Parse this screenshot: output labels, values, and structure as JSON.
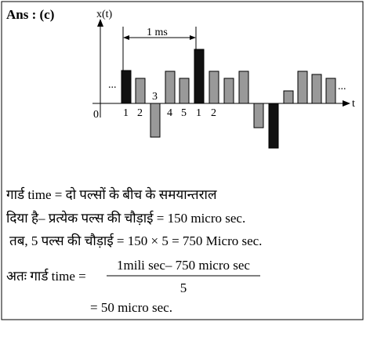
{
  "answer": "Ans : (c)",
  "diagram": {
    "y_label": "x(t)",
    "x_label": "t",
    "origin": "0",
    "period_label": "1 ms",
    "ellipsis": "...",
    "pulse_labels": [
      "1",
      "2",
      "3",
      "4",
      "5",
      "1",
      "2"
    ]
  },
  "lines": [
    "गार्ड time = दो पल्सों के बीच के समयान्तराल",
    "दिया है– प्रत्येक पल्स की चौड़ाई = 150 micro sec.",
    "तब, 5 पल्स की चौड़ाई = 150 × 5 = 750 Micro sec."
  ],
  "formula": {
    "lhs": "अतः गार्ड time =",
    "numerator": "1mili sec– 750 micro sec",
    "denominator": "5",
    "result": "= 50 micro sec."
  }
}
